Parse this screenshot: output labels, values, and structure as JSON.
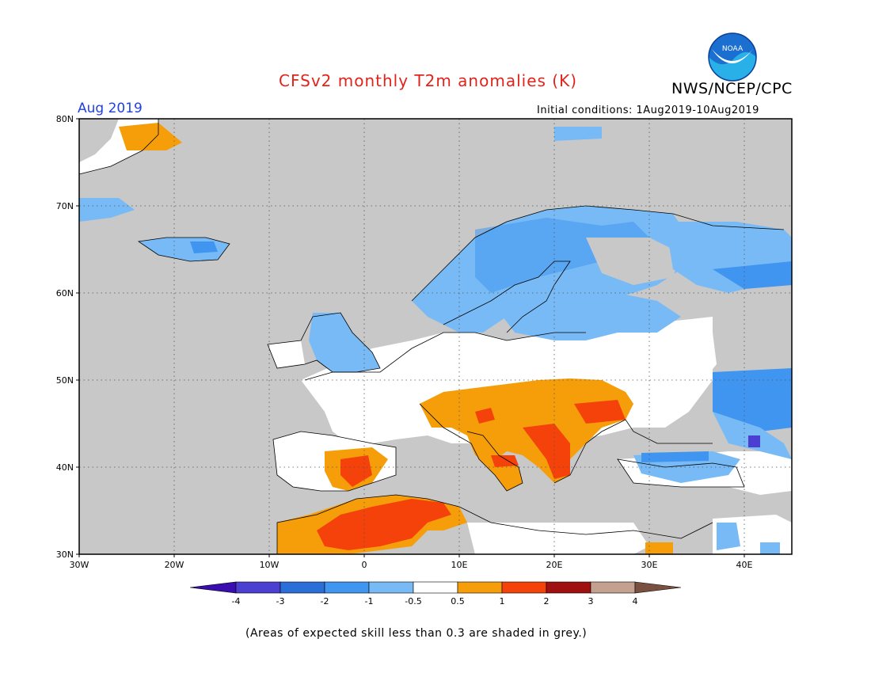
{
  "header": {
    "title": "CFSv2 monthly T2m anomalies (K)",
    "agency": "NWS/NCEP/CPC",
    "logo_text": "NOAA",
    "month": "Aug 2019",
    "initial_conditions": "Initial conditions: 1Aug2019-10Aug2019"
  },
  "map": {
    "lat_labels": [
      "80N",
      "70N",
      "60N",
      "50N",
      "40N",
      "30N"
    ],
    "lon_labels": [
      "30W",
      "20W",
      "10W",
      "0",
      "10E",
      "20E",
      "30E",
      "40E"
    ],
    "lat_range": [
      30,
      80
    ],
    "lon_range": [
      -30,
      45
    ],
    "land_colour": "#c8c8c8",
    "coast_colour": "#000000",
    "grid": "dotted"
  },
  "colorbar": {
    "bins": [
      {
        "color": "#3a0db0"
      },
      {
        "color": "#4a3fd0"
      },
      {
        "color": "#2a6ed8"
      },
      {
        "color": "#3f95f0"
      },
      {
        "color": "#78baf5"
      },
      {
        "color": "#ffffff"
      },
      {
        "color": "#f59e0a"
      },
      {
        "color": "#f5420a"
      },
      {
        "color": "#a01010"
      },
      {
        "color": "#c4a090"
      },
      {
        "color": "#7a5040"
      }
    ],
    "tick_labels": [
      "-4",
      "-3",
      "-2",
      "-1",
      "-0.5",
      "0.5",
      "1",
      "2",
      "3",
      "4"
    ]
  },
  "footnote": "(Areas of expected skill less than 0.3 are shaded in grey.)"
}
